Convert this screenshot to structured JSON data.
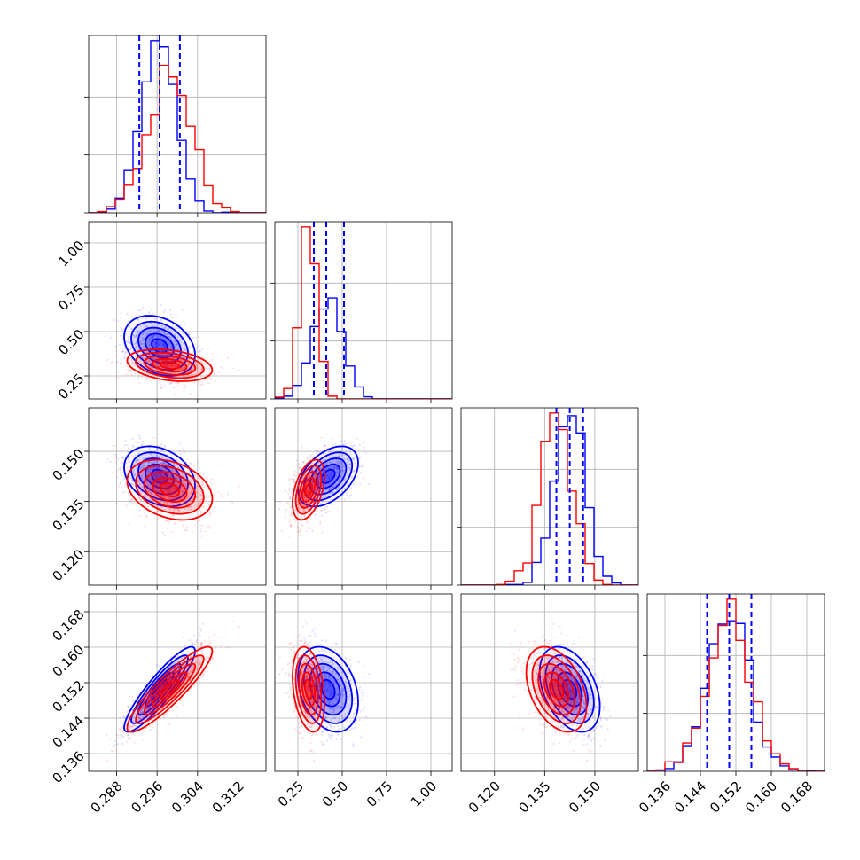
{
  "chart_data": {
    "type": "corner",
    "parameters": 4,
    "grid": true,
    "series": [
      {
        "color": "#0000ff",
        "mean": [
          0.2965,
          0.42,
          0.1425,
          0.1505
        ],
        "sd": [
          0.0035,
          0.085,
          0.0045,
          0.0048
        ],
        "corr": [
          [
            1,
            -0.3,
            -0.3,
            0.9
          ],
          [
            -0.3,
            1,
            0.45,
            -0.3
          ],
          [
            -0.3,
            0.45,
            1,
            -0.4
          ],
          [
            0.9,
            -0.3,
            -0.4,
            1
          ]
        ]
      },
      {
        "color": "#ff0000",
        "mean": [
          0.2985,
          0.31,
          0.1385,
          0.1505
        ],
        "sd": [
          0.0042,
          0.045,
          0.0045,
          0.0048
        ],
        "corr": [
          [
            1,
            -0.3,
            -0.3,
            0.9
          ],
          [
            -0.3,
            1,
            0.45,
            -0.3
          ],
          [
            -0.3,
            0.45,
            1,
            -0.4
          ],
          [
            0.9,
            -0.3,
            -0.4,
            1
          ]
        ]
      }
    ],
    "quantiles_blue": [
      [
        0.2925,
        0.2965,
        0.3005
      ],
      [
        0.34,
        0.41,
        0.51
      ],
      [
        0.1385,
        0.1425,
        0.1465
      ],
      [
        0.1455,
        0.1505,
        0.1555
      ]
    ],
    "axes": [
      {
        "range": [
          0.2825,
          0.3175
        ],
        "ticks": [
          0.288,
          0.296,
          0.304,
          0.312
        ],
        "tick_labels": [
          "0.288",
          "0.296",
          "0.304",
          "0.312"
        ]
      },
      {
        "range": [
          0.12,
          1.12
        ],
        "ticks": [
          0.25,
          0.5,
          0.75,
          1.0
        ],
        "tick_labels": [
          "0.25",
          "0.50",
          "0.75",
          "1.00"
        ]
      },
      {
        "range": [
          0.11,
          0.163
        ],
        "ticks": [
          0.12,
          0.135,
          0.15
        ],
        "tick_labels": [
          "0.120",
          "0.135",
          "0.150"
        ]
      },
      {
        "range": [
          0.132,
          0.172
        ],
        "ticks": [
          0.136,
          0.144,
          0.152,
          0.16,
          0.168
        ],
        "tick_labels": [
          "0.136",
          "0.144",
          "0.152",
          "0.160",
          "0.168"
        ]
      }
    ]
  }
}
